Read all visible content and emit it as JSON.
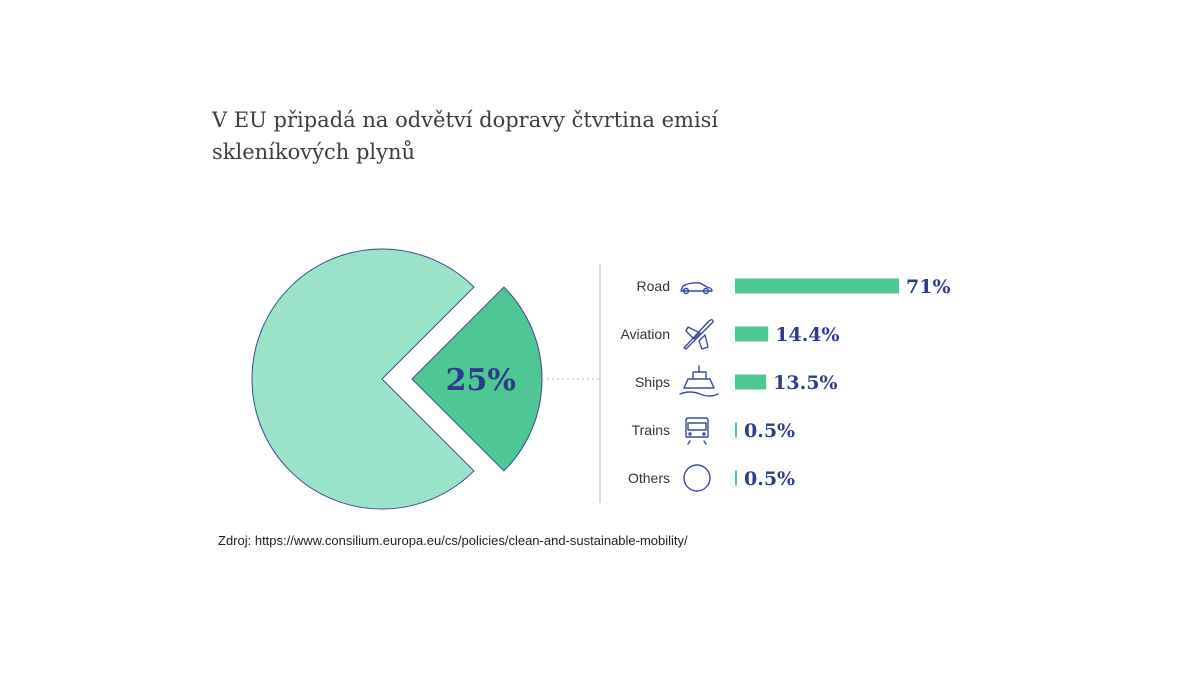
{
  "title": "V EU připadá na odvětví dopravy čtvrtina emisí skleníkových plynů",
  "source": "Zdroj: https://www.consilium.europa.eu/cs/policies/clean-and-sustainable-mobility/",
  "colors": {
    "pie_main": "#9ae3c9",
    "pie_slice": "#4ec795",
    "pie_stroke": "#3d4a8f",
    "bar": "#4ec795",
    "value_text": "#2e3a8c"
  },
  "chart_data": [
    {
      "type": "pie",
      "categories": [
        "",
        ""
      ],
      "values": [
        75,
        25
      ],
      "labels": [
        "",
        "25%"
      ],
      "exploded_slice": 1
    },
    {
      "type": "bar",
      "orientation": "horizontal",
      "categories": [
        "Road",
        "Aviation",
        "Ships",
        "Trains",
        "Others"
      ],
      "values": [
        71,
        14.4,
        13.5,
        0.5,
        0.5
      ],
      "value_labels": [
        "71%",
        "14.4%",
        "13.5%",
        "0.5%",
        "0.5%"
      ],
      "icons": [
        "car-icon",
        "plane-icon",
        "ship-icon",
        "train-icon",
        "circle-icon"
      ]
    }
  ]
}
